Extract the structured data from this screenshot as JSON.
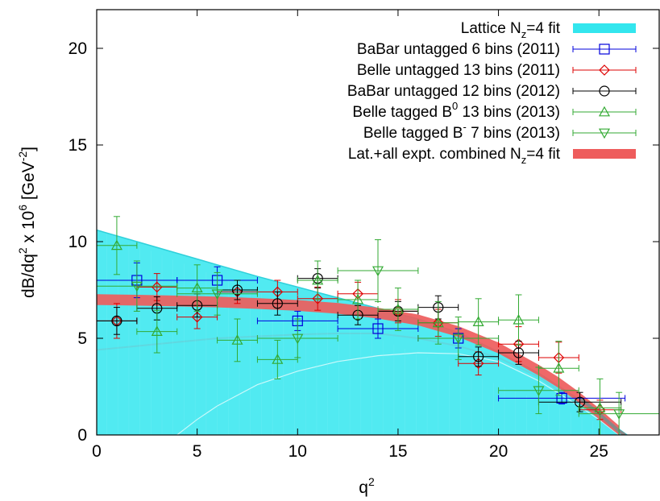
{
  "chart_data": {
    "type": "scatter",
    "xlabel": "q",
    "xlabel_sup": "2",
    "ylabel": "dB/dq",
    "ylabel_parts": [
      "dB/dq",
      "2",
      " x 10",
      "6",
      " [GeV",
      "-2",
      "]"
    ],
    "xlim": [
      0,
      28
    ],
    "ylim": [
      0,
      22
    ],
    "xticks": [
      0,
      5,
      10,
      15,
      20,
      25
    ],
    "yticks": [
      0,
      5,
      10,
      15,
      20
    ],
    "grid": false,
    "legend_position": "top-right",
    "bands": [
      {
        "name": "Lattice N_z=4 fit",
        "legend_parts": [
          "Lattice N",
          "z",
          "=4 fit"
        ],
        "color": "#33e6ee",
        "upper": [
          [
            0,
            10.6
          ],
          [
            2,
            10.0
          ],
          [
            4,
            9.4
          ],
          [
            6,
            8.8
          ],
          [
            8,
            8.2
          ],
          [
            10,
            7.65
          ],
          [
            12,
            7.1
          ],
          [
            14,
            6.55
          ],
          [
            16,
            6.0
          ],
          [
            18,
            5.3
          ],
          [
            20,
            4.3
          ],
          [
            22,
            3.2
          ],
          [
            24,
            1.85
          ],
          [
            25,
            1.1
          ],
          [
            26,
            0.3
          ],
          [
            26.4,
            0
          ]
        ],
        "lower": [
          [
            0,
            0
          ],
          [
            2,
            0
          ],
          [
            4,
            0
          ],
          [
            26,
            0
          ],
          [
            26.2,
            0
          ],
          [
            24,
            1.2
          ],
          [
            22,
            2.7
          ],
          [
            20,
            3.9
          ],
          [
            18,
            4.3
          ],
          [
            16,
            4.2
          ],
          [
            14,
            4.1
          ],
          [
            12,
            3.1
          ],
          [
            10,
            2.0
          ],
          [
            8,
            1.1
          ],
          [
            6,
            0.4
          ],
          [
            4.5,
            0
          ]
        ],
        "lower_curve": [
          [
            0,
            4.4
          ],
          [
            2,
            4.6
          ],
          [
            4,
            4.8
          ],
          [
            6,
            5.0
          ],
          [
            8,
            5.1
          ],
          [
            10,
            5.2
          ],
          [
            12,
            5.25
          ],
          [
            14,
            5.25
          ],
          [
            16,
            5.0
          ],
          [
            18,
            4.6
          ],
          [
            20,
            4.0
          ],
          [
            22,
            3.0
          ],
          [
            24,
            1.6
          ],
          [
            25,
            0.9
          ],
          [
            26,
            0.1
          ]
        ],
        "inner_curve": [
          [
            4,
            0
          ],
          [
            5,
            0.8
          ],
          [
            6,
            1.5
          ],
          [
            8,
            2.6
          ],
          [
            10,
            3.3
          ],
          [
            12,
            3.8
          ],
          [
            14,
            4.1
          ],
          [
            16,
            4.25
          ],
          [
            18,
            4.2
          ],
          [
            20,
            3.8
          ],
          [
            22,
            2.8
          ],
          [
            24,
            1.5
          ],
          [
            25,
            0.8
          ],
          [
            26,
            0
          ]
        ]
      },
      {
        "name": "Lat.+all expt. combined N_z=4 fit",
        "legend_parts": [
          "Lat.+all expt. combined N",
          "z",
          "=4 fit"
        ],
        "color": "#ee5c5c",
        "center": [
          [
            0,
            7.0
          ],
          [
            2,
            6.97
          ],
          [
            4,
            6.93
          ],
          [
            6,
            6.88
          ],
          [
            8,
            6.8
          ],
          [
            10,
            6.7
          ],
          [
            12,
            6.55
          ],
          [
            14,
            6.3
          ],
          [
            16,
            5.95
          ],
          [
            18,
            5.35
          ],
          [
            20,
            4.5
          ],
          [
            22,
            3.35
          ],
          [
            23,
            2.7
          ],
          [
            24,
            1.95
          ],
          [
            25,
            1.1
          ],
          [
            26,
            0.2
          ]
        ],
        "halfwidth": 0.28
      }
    ],
    "series": [
      {
        "name": "BaBar untagged 6 bins (2011)",
        "color": "#0000dd",
        "marker": "square",
        "points": [
          {
            "x": 2,
            "xerr": 2,
            "y": 8.0,
            "yerr": 0.9
          },
          {
            "x": 6,
            "xerr": 2,
            "y": 8.0,
            "yerr": 0.7
          },
          {
            "x": 10,
            "xerr": 2,
            "y": 5.9,
            "yerr": 0.5
          },
          {
            "x": 14,
            "xerr": 2,
            "y": 5.5,
            "yerr": 0.5
          },
          {
            "x": 18,
            "xerr": 2,
            "y": 5.0,
            "yerr": 0.5
          },
          {
            "x": 23.15,
            "xerr": 3.15,
            "y": 1.9,
            "yerr": 0.3
          }
        ]
      },
      {
        "name": "Belle untagged 13 bins (2011)",
        "color": "#dd0000",
        "marker": "diamond",
        "points": [
          {
            "x": 1,
            "xerr": 1,
            "y": 5.9,
            "yerr": 0.9
          },
          {
            "x": 3,
            "xerr": 1,
            "y": 7.65,
            "yerr": 0.7
          },
          {
            "x": 5,
            "xerr": 1,
            "y": 6.1,
            "yerr": 0.6
          },
          {
            "x": 7,
            "xerr": 1,
            "y": 7.4,
            "yerr": 0.6
          },
          {
            "x": 9,
            "xerr": 1,
            "y": 7.4,
            "yerr": 0.6
          },
          {
            "x": 11,
            "xerr": 1,
            "y": 7.05,
            "yerr": 0.6
          },
          {
            "x": 13,
            "xerr": 1,
            "y": 7.3,
            "yerr": 0.6
          },
          {
            "x": 15,
            "xerr": 1,
            "y": 6.4,
            "yerr": 0.6
          },
          {
            "x": 17,
            "xerr": 1,
            "y": 5.8,
            "yerr": 0.7
          },
          {
            "x": 19,
            "xerr": 1,
            "y": 3.7,
            "yerr": 0.6
          },
          {
            "x": 21,
            "xerr": 1,
            "y": 4.7,
            "yerr": 0.9
          },
          {
            "x": 23,
            "xerr": 1,
            "y": 4.0,
            "yerr": 0.8
          },
          {
            "x": 25.05,
            "xerr": 1.05,
            "y": 1.3,
            "yerr": 0.5
          }
        ]
      },
      {
        "name": "BaBar untagged 12 bins (2012)",
        "color": "#000000",
        "marker": "circle",
        "points": [
          {
            "x": 1,
            "xerr": 1,
            "y": 5.9,
            "yerr": 0.7
          },
          {
            "x": 3,
            "xerr": 1,
            "y": 6.55,
            "yerr": 0.6
          },
          {
            "x": 5,
            "xerr": 1,
            "y": 6.7,
            "yerr": 0.6
          },
          {
            "x": 7,
            "xerr": 1,
            "y": 7.5,
            "yerr": 0.5
          },
          {
            "x": 9,
            "xerr": 1,
            "y": 6.8,
            "yerr": 0.6
          },
          {
            "x": 11,
            "xerr": 1,
            "y": 8.1,
            "yerr": 0.5
          },
          {
            "x": 13,
            "xerr": 1,
            "y": 6.2,
            "yerr": 0.5
          },
          {
            "x": 15,
            "xerr": 1,
            "y": 6.4,
            "yerr": 0.5
          },
          {
            "x": 17,
            "xerr": 1,
            "y": 6.6,
            "yerr": 0.6
          },
          {
            "x": 19,
            "xerr": 1,
            "y": 4.05,
            "yerr": 0.5
          },
          {
            "x": 21,
            "xerr": 1,
            "y": 4.25,
            "yerr": 0.6
          },
          {
            "x": 24.05,
            "xerr": 2.05,
            "y": 1.7,
            "yerr": 0.5
          }
        ]
      },
      {
        "name": "Belle tagged B^0 13 bins (2013)",
        "legend_parts": [
          "Belle tagged B",
          "0",
          " 13 bins (2013)"
        ],
        "color": "#33aa33",
        "marker": "triangle-up",
        "points": [
          {
            "x": 1,
            "xerr": 1,
            "y": 9.8,
            "yerr": 1.5
          },
          {
            "x": 3,
            "xerr": 1,
            "y": 5.35,
            "yerr": 1.1
          },
          {
            "x": 5,
            "xerr": 1,
            "y": 7.6,
            "yerr": 1.2
          },
          {
            "x": 7,
            "xerr": 1,
            "y": 4.9,
            "yerr": 1.1
          },
          {
            "x": 9,
            "xerr": 1,
            "y": 3.9,
            "yerr": 1.0
          },
          {
            "x": 11,
            "xerr": 1,
            "y": 8.0,
            "yerr": 1.0
          },
          {
            "x": 13,
            "xerr": 1,
            "y": 7.0,
            "yerr": 1.0
          },
          {
            "x": 15,
            "xerr": 1,
            "y": 6.5,
            "yerr": 1.1
          },
          {
            "x": 17,
            "xerr": 1,
            "y": 5.8,
            "yerr": 1.1
          },
          {
            "x": 19,
            "xerr": 1,
            "y": 5.85,
            "yerr": 1.2
          },
          {
            "x": 21,
            "xerr": 1,
            "y": 5.95,
            "yerr": 1.3
          },
          {
            "x": 23,
            "xerr": 1,
            "y": 3.45,
            "yerr": 1.4
          },
          {
            "x": 25.05,
            "xerr": 1.05,
            "y": 1.4,
            "yerr": 1.5
          }
        ]
      },
      {
        "name": "Belle tagged B^- 7 bins (2013)",
        "legend_parts": [
          "Belle tagged B",
          "-",
          " 7 bins (2013)"
        ],
        "color": "#33aa33",
        "marker": "triangle-down",
        "points": [
          {
            "x": 2,
            "xerr": 2,
            "y": 7.7,
            "yerr": 1.3
          },
          {
            "x": 6,
            "xerr": 2,
            "y": 7.3,
            "yerr": 1.1
          },
          {
            "x": 10,
            "xerr": 2,
            "y": 5.0,
            "yerr": 1.0
          },
          {
            "x": 14,
            "xerr": 2,
            "y": 8.5,
            "yerr": 1.6
          },
          {
            "x": 18,
            "xerr": 2,
            "y": 5.0,
            "yerr": 1.1
          },
          {
            "x": 22,
            "xerr": 2,
            "y": 2.3,
            "yerr": 1.2
          },
          {
            "x": 26,
            "xerr": 2,
            "y": 1.1,
            "yerr": 1.1
          }
        ]
      }
    ]
  }
}
